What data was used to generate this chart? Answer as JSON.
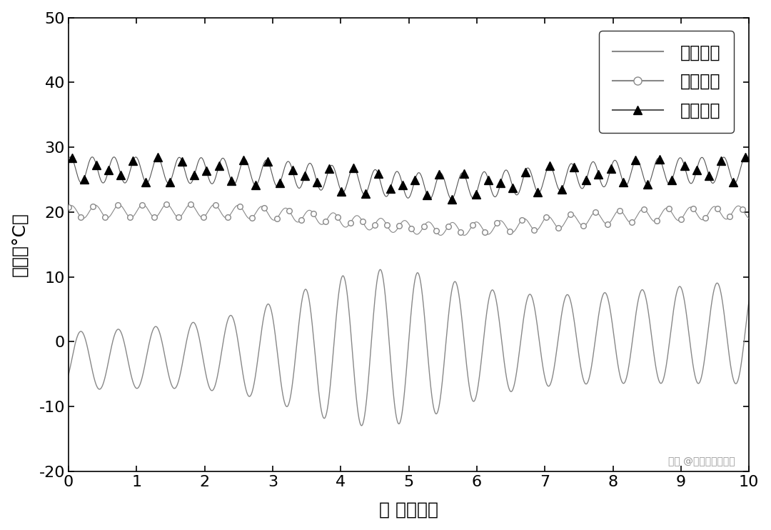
{
  "xlabel": "时 间（天）",
  "ylabel": "温度（°C）",
  "xlim": [
    0,
    10
  ],
  "ylim": [
    -20,
    50
  ],
  "xticks": [
    0,
    1,
    2,
    3,
    4,
    5,
    6,
    7,
    8,
    9,
    10
  ],
  "yticks": [
    -20,
    -10,
    0,
    10,
    20,
    30,
    40,
    50
  ],
  "legend_labels": [
    "室外温度",
    "室内温度",
    "地面温度"
  ],
  "watermark": "头条 @科小易技术转移",
  "background_color": "#ffffff",
  "gray": "#888888",
  "black": "#000000"
}
